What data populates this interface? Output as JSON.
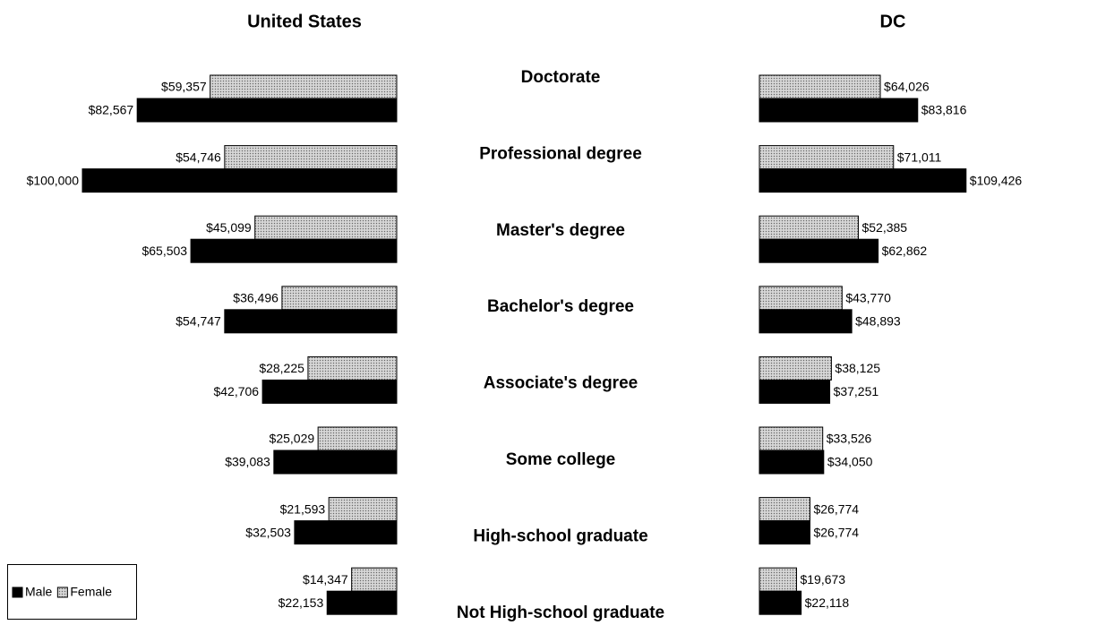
{
  "chart_data": {
    "type": "bar",
    "categories": [
      "Doctorate",
      "Professional degree",
      "Master's degree",
      "Bachelor's degree",
      "Associate's degree",
      "Some college",
      "High-school graduate",
      "Not High-school graduate"
    ],
    "series": [
      {
        "name": "Male",
        "color": "#000000"
      },
      {
        "name": "Female",
        "color": "#c8c8c8"
      }
    ],
    "legend": "bottom-left",
    "panels": [
      {
        "title": "United States",
        "direction": "left",
        "xlim": [
          0,
          100000
        ],
        "series": [
          {
            "values": [
              82567,
              100000,
              65503,
              54747,
              42706,
              39083,
              32503,
              22153
            ],
            "value_labels": [
              "$82,567",
              "$100,000",
              "$65,503",
              "$54,747",
              "$42,706",
              "$39,083",
              "$32,503",
              "$22,153"
            ]
          },
          {
            "values": [
              59357,
              54746,
              45099,
              36496,
              28225,
              25029,
              21593,
              14347
            ],
            "value_labels": [
              "$59,357",
              "$54,746",
              "$45,099",
              "$36,496",
              "$28,225",
              "$25,029",
              "$21,593",
              "$14,347"
            ]
          }
        ]
      },
      {
        "title": "DC",
        "direction": "right",
        "xlim": [
          0,
          110000
        ],
        "series": [
          {
            "values": [
              83816,
              109426,
              62862,
              48893,
              37251,
              34050,
              26774,
              22118
            ],
            "value_labels": [
              "$83,816",
              "$109,426",
              "$62,862",
              "$48,893",
              "$37,251",
              "$34,050",
              "$26,774",
              "$22,118"
            ]
          },
          {
            "values": [
              64026,
              71011,
              52385,
              43770,
              38125,
              33526,
              26774,
              19673
            ],
            "value_labels": [
              "$64,026",
              "$71,011",
              "$52,385",
              "$43,770",
              "$38,125",
              "$33,526",
              "$26,774",
              "$19,673"
            ]
          }
        ]
      }
    ]
  }
}
